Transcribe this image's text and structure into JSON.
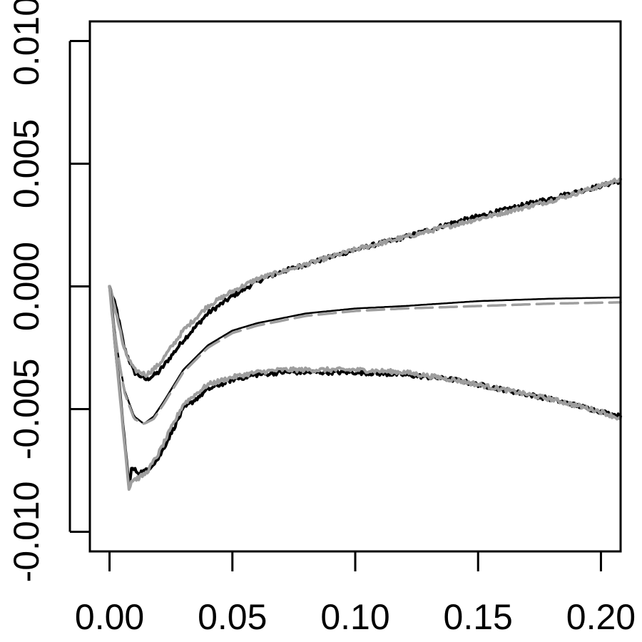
{
  "chart_data": {
    "type": "line",
    "title": "",
    "xlabel": "",
    "ylabel": "",
    "xlim": [
      -0.008,
      0.208
    ],
    "ylim": [
      -0.0108,
      0.0108
    ],
    "x_ticks": [
      0.0,
      0.05,
      0.1,
      0.15,
      0.2
    ],
    "x_tick_labels": [
      "0.00",
      "0.05",
      "0.10",
      "0.15",
      "0.20"
    ],
    "y_ticks": [
      -0.01,
      -0.005,
      0.0,
      0.005,
      0.01
    ],
    "y_tick_labels": [
      "-0.010",
      "-0.005",
      "0.000",
      "0.005",
      "0.010"
    ],
    "grid": false,
    "legend": "none",
    "series": [
      {
        "style": "solid",
        "color": "#000000",
        "noisy": true,
        "x": [
          0,
          0.003,
          0.006,
          0.01,
          0.015,
          0.02,
          0.03,
          0.04,
          0.05,
          0.06,
          0.07,
          0.08,
          0.09,
          0.1,
          0.12,
          0.14,
          0.16,
          0.18,
          0.2,
          0.208
        ],
        "y": [
          0,
          -0.001,
          -0.0025,
          -0.0035,
          -0.0038,
          -0.0035,
          -0.0022,
          -0.0011,
          -0.0004,
          0.0002,
          0.0006,
          0.0009,
          0.0012,
          0.0015,
          0.002,
          0.0026,
          0.0031,
          0.0036,
          0.0041,
          0.0043
        ]
      },
      {
        "style": "solid",
        "color": "#9e9e9e",
        "noisy": true,
        "x": [
          0,
          0.003,
          0.006,
          0.01,
          0.015,
          0.02,
          0.03,
          0.04,
          0.05,
          0.06,
          0.07,
          0.08,
          0.09,
          0.1,
          0.12,
          0.14,
          0.16,
          0.18,
          0.2,
          0.208
        ],
        "y": [
          0,
          -0.0012,
          -0.0026,
          -0.0034,
          -0.0036,
          -0.0032,
          -0.0018,
          -0.0008,
          -0.0002,
          0.0003,
          0.0006,
          0.0009,
          0.0012,
          0.0015,
          0.002,
          0.0025,
          0.003,
          0.0035,
          0.0041,
          0.0044
        ]
      },
      {
        "style": "solid",
        "color": "#000000",
        "noisy": false,
        "x": [
          0,
          0.003,
          0.006,
          0.01,
          0.014,
          0.018,
          0.022,
          0.03,
          0.04,
          0.05,
          0.06,
          0.08,
          0.1,
          0.12,
          0.15,
          0.18,
          0.208
        ],
        "y": [
          0,
          -0.0025,
          -0.0042,
          -0.0053,
          -0.0056,
          -0.0053,
          -0.0047,
          -0.0034,
          -0.0024,
          -0.0018,
          -0.0015,
          -0.0011,
          -0.0009,
          -0.0008,
          -0.0006,
          -0.0005,
          -0.00045
        ]
      },
      {
        "style": "dashed",
        "color": "#9e9e9e",
        "noisy": false,
        "x": [
          0,
          0.003,
          0.006,
          0.01,
          0.014,
          0.018,
          0.022,
          0.03,
          0.04,
          0.05,
          0.06,
          0.08,
          0.1,
          0.12,
          0.15,
          0.18,
          0.208
        ],
        "y": [
          0,
          -0.0025,
          -0.0043,
          -0.0054,
          -0.0056,
          -0.0054,
          -0.0048,
          -0.0035,
          -0.0025,
          -0.0019,
          -0.0016,
          -0.0012,
          -0.001,
          -0.0009,
          -0.0008,
          -0.0007,
          -0.00065
        ]
      },
      {
        "style": "solid",
        "color": "#000000",
        "noisy": true,
        "x": [
          0,
          0.004,
          0.008,
          0.009,
          0.012,
          0.015,
          0.02,
          0.025,
          0.03,
          0.04,
          0.05,
          0.06,
          0.07,
          0.08,
          0.09,
          0.1,
          0.12,
          0.14,
          0.16,
          0.18,
          0.2,
          0.208
        ],
        "y": [
          0,
          -0.0041,
          -0.0082,
          -0.0074,
          -0.0076,
          -0.0075,
          -0.007,
          -0.006,
          -0.005,
          -0.0042,
          -0.0038,
          -0.0036,
          -0.0035,
          -0.0035,
          -0.0035,
          -0.0035,
          -0.0036,
          -0.0038,
          -0.0042,
          -0.0046,
          -0.0051,
          -0.0053
        ]
      },
      {
        "style": "solid",
        "color": "#9e9e9e",
        "noisy": true,
        "x": [
          0,
          0.004,
          0.008,
          0.009,
          0.012,
          0.015,
          0.02,
          0.025,
          0.03,
          0.04,
          0.05,
          0.06,
          0.07,
          0.08,
          0.09,
          0.1,
          0.12,
          0.14,
          0.16,
          0.18,
          0.2,
          0.208
        ],
        "y": [
          0,
          -0.0042,
          -0.0083,
          -0.0079,
          -0.0078,
          -0.0076,
          -0.0068,
          -0.0058,
          -0.0048,
          -0.004,
          -0.0037,
          -0.0035,
          -0.0034,
          -0.0034,
          -0.0034,
          -0.0034,
          -0.0035,
          -0.0038,
          -0.0042,
          -0.0046,
          -0.0051,
          -0.0054
        ]
      }
    ]
  }
}
